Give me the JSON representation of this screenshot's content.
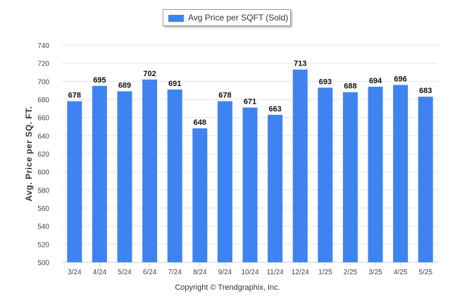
{
  "chart_data": {
    "type": "bar",
    "categories": [
      "3/24",
      "4/24",
      "5/24",
      "6/24",
      "7/24",
      "8/24",
      "9/24",
      "10/24",
      "11/24",
      "12/24",
      "1/25",
      "2/25",
      "3/25",
      "4/25",
      "5/25"
    ],
    "series": [
      {
        "name": "Avg Price per SQFT (Sold)",
        "values": [
          678,
          695,
          689,
          702,
          691,
          648,
          678,
          671,
          663,
          713,
          693,
          688,
          694,
          696,
          683
        ]
      }
    ],
    "ylabel": "Avg. Price per SQ. FT.",
    "xlabel": "",
    "ylim": [
      500,
      740
    ],
    "yticks": [
      500,
      520,
      540,
      560,
      580,
      600,
      620,
      640,
      660,
      680,
      700,
      720,
      740
    ],
    "grid": true,
    "legend_position": "top-center",
    "bar_color": "#3f83f0",
    "data_labels": true
  },
  "footer": {
    "copyright": "Copyright © Trendgraphix, Inc."
  }
}
